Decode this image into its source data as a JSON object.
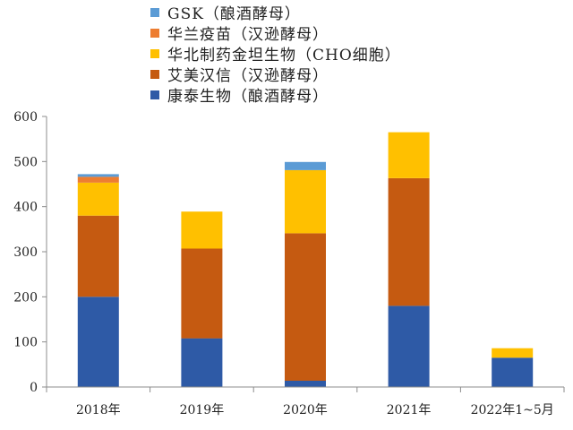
{
  "chart_data": {
    "type": "bar",
    "stacked": true,
    "categories": [
      "2018年",
      "2019年",
      "2020年",
      "2021年",
      "2022年1~5月"
    ],
    "ylim": [
      0,
      600
    ],
    "yticks": [
      0,
      100,
      200,
      300,
      400,
      500,
      600
    ],
    "grid": false,
    "legend_position": "top",
    "series": [
      {
        "name": "康泰生物（酿酒酵母）",
        "color": "#2E5AA6",
        "values": [
          200,
          108,
          14,
          180,
          65
        ]
      },
      {
        "name": "艾美汉信（汉逊酵母）",
        "color": "#C55A11",
        "values": [
          180,
          199,
          327,
          283,
          0
        ]
      },
      {
        "name": "华北制药金坦生物（CHO细胞）",
        "color": "#FFC000",
        "values": [
          73,
          82,
          140,
          102,
          21
        ]
      },
      {
        "name": "华兰疫苗（汉逊酵母）",
        "color": "#ED7D31",
        "values": [
          13,
          0,
          0,
          0,
          0
        ]
      },
      {
        "name": "GSK（酿酒酵母）",
        "color": "#5B9BD5",
        "values": [
          6,
          0,
          18,
          0,
          0
        ]
      }
    ]
  }
}
